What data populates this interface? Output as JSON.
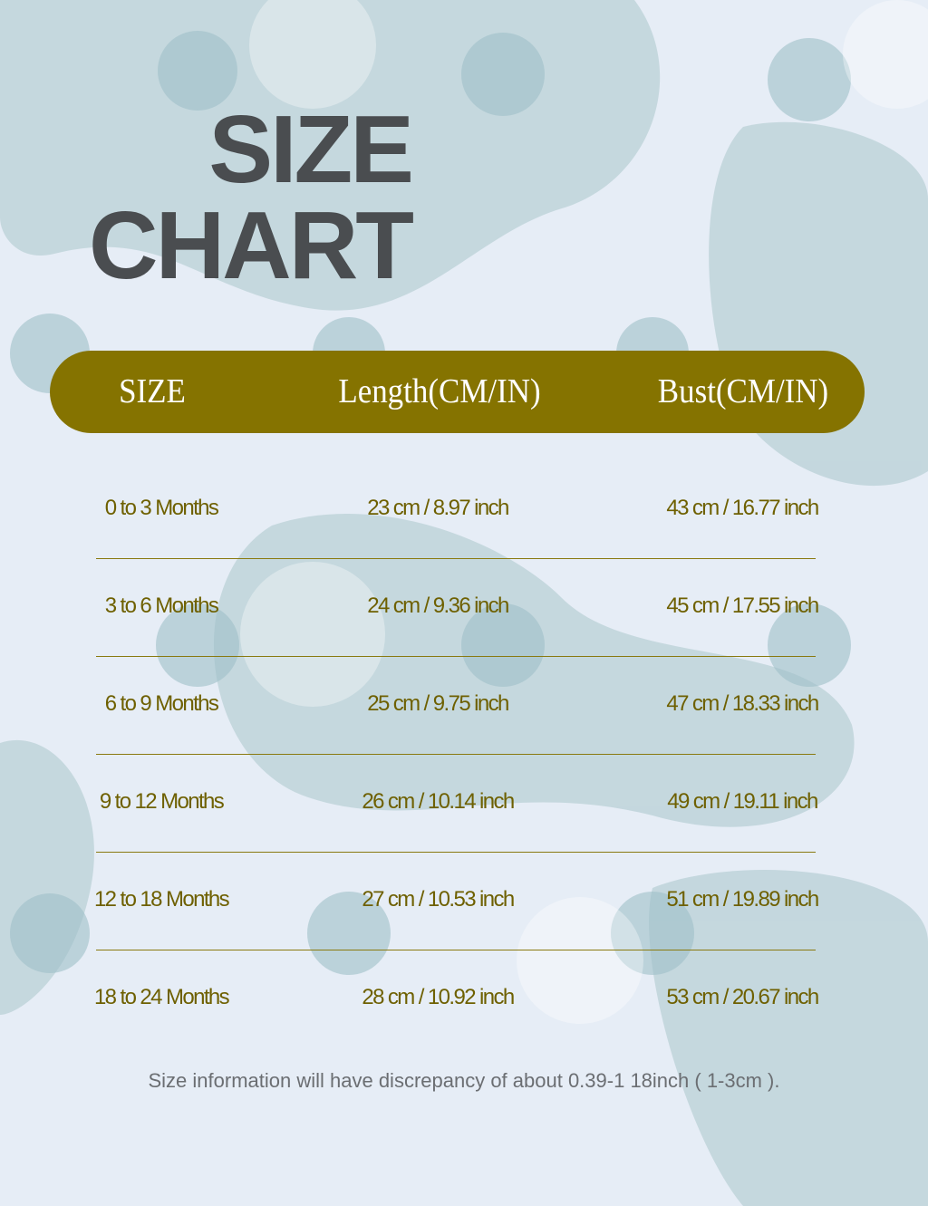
{
  "title": {
    "line1": "SIZE",
    "line2": "CHART"
  },
  "table": {
    "headers": [
      "SIZE",
      "Length(CM/IN)",
      "Bust(CM/IN)"
    ],
    "rows": [
      [
        "0 to 3 Months",
        "23 cm / 8.97 inch",
        "43 cm / 16.77 inch"
      ],
      [
        "3 to 6 Months",
        "24 cm / 9.36 inch",
        "45 cm / 17.55 inch"
      ],
      [
        "6 to 9 Months",
        "25 cm / 9.75 inch",
        "47 cm / 18.33 inch"
      ],
      [
        "9 to 12 Months",
        "26 cm / 10.14 inch",
        "49 cm / 19.11 inch"
      ],
      [
        "12 to 18 Months",
        "27 cm / 10.53 inch",
        "51 cm / 19.89 inch"
      ],
      [
        "18 to 24 Months",
        "28 cm / 10.92 inch",
        "53 cm / 20.67 inch"
      ]
    ]
  },
  "note": "Size information will have discrepancy of about 0.39-1 18inch ( 1-3cm ).",
  "colors": {
    "header": "#857300",
    "text": "#6e6000",
    "background": "#e6edf6",
    "title": "#4a4d50"
  }
}
